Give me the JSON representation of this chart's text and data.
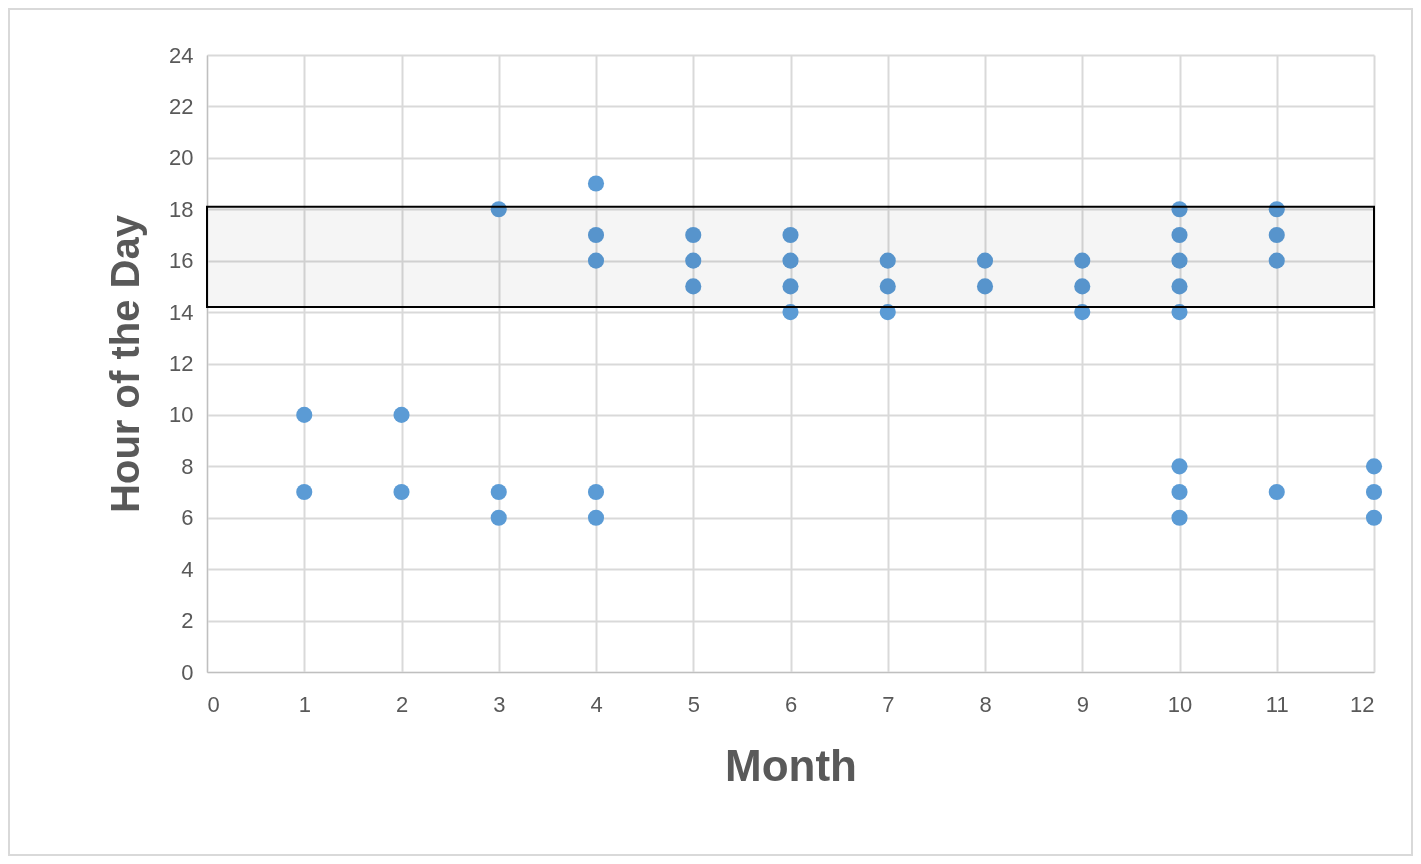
{
  "chart_data": {
    "type": "scatter",
    "xlabel": "Month",
    "ylabel": "Hour of the Day",
    "x": [
      1,
      1,
      2,
      2,
      3,
      3,
      3,
      4,
      4,
      4,
      4,
      4,
      5,
      5,
      5,
      6,
      6,
      6,
      6,
      7,
      7,
      7,
      8,
      8,
      9,
      9,
      9,
      10,
      10,
      10,
      10,
      10,
      10,
      10,
      10,
      11,
      11,
      11,
      11,
      12,
      12,
      12
    ],
    "series": [
      {
        "color": "#5b9bd5",
        "values": [
          10,
          7,
          10,
          7,
          18,
          7,
          6,
          19,
          17,
          16,
          7,
          6,
          17,
          16,
          15,
          17,
          16,
          15,
          14,
          16,
          15,
          14,
          16,
          15,
          16,
          15,
          14,
          18,
          17,
          16,
          15,
          14,
          8,
          7,
          6,
          18,
          17,
          16,
          7,
          8,
          7,
          6
        ]
      }
    ],
    "xlim": [
      0,
      12
    ],
    "xticks": [
      0,
      1,
      2,
      3,
      4,
      5,
      6,
      7,
      8,
      9,
      10,
      11,
      12
    ],
    "ylim": [
      0,
      24
    ],
    "yticks": [
      0,
      2,
      4,
      6,
      8,
      10,
      12,
      14,
      16,
      18,
      20,
      22,
      24
    ],
    "grid": true,
    "marker": "circle",
    "bands": [
      {
        "axis": "y",
        "from": 14.2,
        "to": 18.1,
        "color": "#000000"
      }
    ]
  }
}
